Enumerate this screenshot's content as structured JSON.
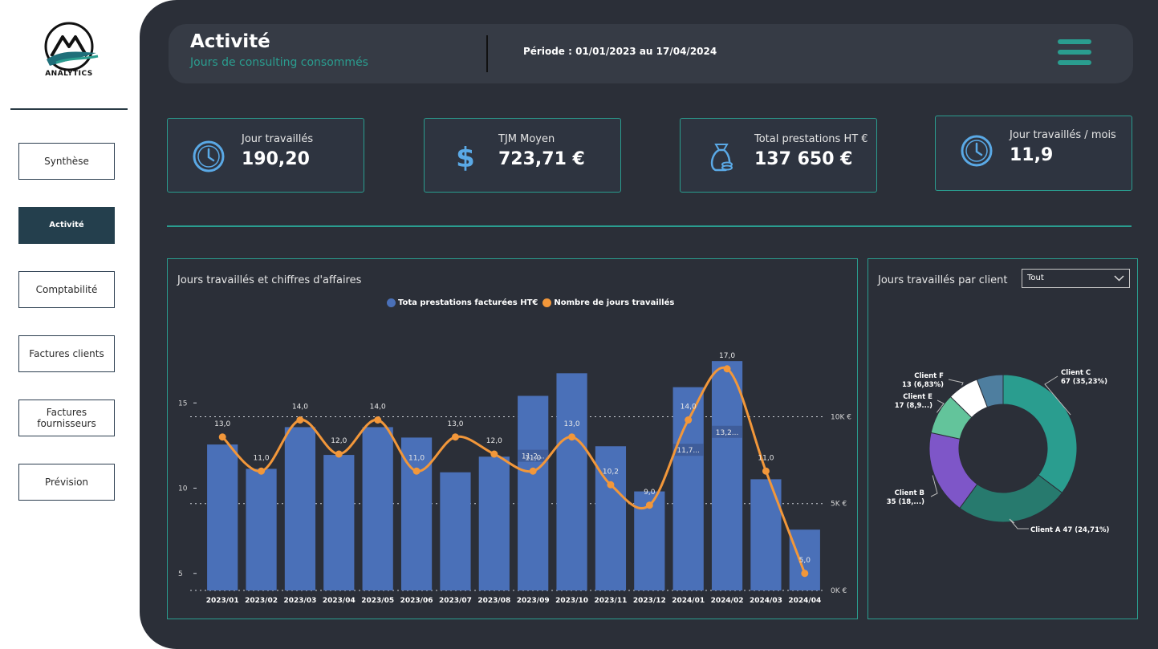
{
  "sidebar": {
    "logo_text": "ANALYTICS",
    "items": [
      {
        "label": "Synthèse",
        "active": false
      },
      {
        "label": "Activité",
        "active": true
      },
      {
        "label": "Comptabilité",
        "active": false
      },
      {
        "label": "Factures clients",
        "active": false
      },
      {
        "label": "Factures\nfournisseurs",
        "active": false
      },
      {
        "label": "Prévision",
        "active": false
      }
    ]
  },
  "header": {
    "title": "Activité",
    "subtitle": "Jours de consulting consommés",
    "period": "Période : 01/01/2023 au 17/04/2024"
  },
  "kpis": [
    {
      "label": "Jour travaillés",
      "value": "190,20",
      "icon": "clock-icon"
    },
    {
      "label": "TJM Moyen",
      "value": "723,71 €",
      "icon": "dollar-icon"
    },
    {
      "label": "Total prestations HT €",
      "value": "137 650 €",
      "icon": "money-bag-icon"
    },
    {
      "label": "Jour travaillés / mois",
      "value": "11,9",
      "icon": "clock-icon"
    }
  ],
  "colors": {
    "accent": "#2a9d8f",
    "bar": "#4a70b8",
    "line": "#f2973a",
    "background": "#2b2f38"
  },
  "combo_panel": {
    "title": "Jours travaillés et chiffres d'affaires"
  },
  "donut_panel": {
    "title": "Jours travaillés par client",
    "filter_value": "Tout"
  },
  "chart_data": [
    {
      "type": "bar+line",
      "title": "Jours travaillés et chiffres d'affaires",
      "categories": [
        "2023/01",
        "2023/02",
        "2023/03",
        "2023/04",
        "2023/05",
        "2023/06",
        "2023/07",
        "2023/08",
        "2023/09",
        "2023/10",
        "2023/11",
        "2023/12",
        "2024/01",
        "2024/02",
        "2024/03",
        "2024/04"
      ],
      "series": [
        {
          "name": "Tota prestations facturées HT€",
          "axis": "right",
          "values": [
            8400,
            7000,
            9400,
            7800,
            9400,
            8800,
            6800,
            7700,
            11200,
            12500,
            8300,
            5700,
            11700,
            13200,
            6400,
            3500
          ]
        },
        {
          "name": "Nombre de jours travaillés",
          "axis": "left",
          "values": [
            13.0,
            11.0,
            14.0,
            12.0,
            14.0,
            11.0,
            13.0,
            12.0,
            11.0,
            13.0,
            10.2,
            9.0,
            14.0,
            17.0,
            11.0,
            5.0
          ]
        }
      ],
      "line_labels": [
        "13,0",
        "11,0",
        "14,0",
        "12,0",
        "14,0",
        "11,0",
        "13,0",
        "12,0",
        "11,0",
        "13,0",
        "10,2",
        "9,0",
        "14,0",
        "17,0",
        "11,0",
        "5,0"
      ],
      "bar_inner_labels": {
        "8": "11,2...",
        "12": "11,7...",
        "13": "13,2..."
      },
      "left_axis": {
        "ticks": [
          5,
          10,
          15
        ],
        "labels": [
          "5",
          "10",
          "15"
        ],
        "range": [
          4,
          20
        ]
      },
      "right_axis": {
        "ticks": [
          0,
          5000,
          10000
        ],
        "labels": [
          "0K €",
          "5K €",
          "10K €"
        ],
        "range": [
          0,
          15700
        ]
      },
      "grid": "dotted at right-axis ticks",
      "legend_position": "top-center"
    },
    {
      "type": "pie",
      "title": "Jours travaillés par client",
      "donut": true,
      "slices": [
        {
          "name": "Client C",
          "value": 67,
          "pct": "35,23%",
          "label": "Client C\n67 (35,23%)",
          "color": "#2a9d8f"
        },
        {
          "name": "Client A",
          "value": 47,
          "pct": "24,71%",
          "label": "Client A 47 (24,71%)",
          "color": "#277a6e"
        },
        {
          "name": "Client B",
          "value": 35,
          "pct": "18...",
          "label": "Client B\n35 (18,...)",
          "color": "#7e56c8"
        },
        {
          "name": "Client E",
          "value": 17,
          "pct": "8,9...",
          "label": "Client E\n17 (8,9...)",
          "color": "#63c49b"
        },
        {
          "name": "Client F",
          "value": 13,
          "pct": "6,83%",
          "label": "Client F\n13 (6,83%)",
          "color": "#ffffff"
        },
        {
          "name": "",
          "value": 11,
          "pct": "",
          "label": "",
          "color": "#4e7e9f"
        }
      ]
    }
  ]
}
